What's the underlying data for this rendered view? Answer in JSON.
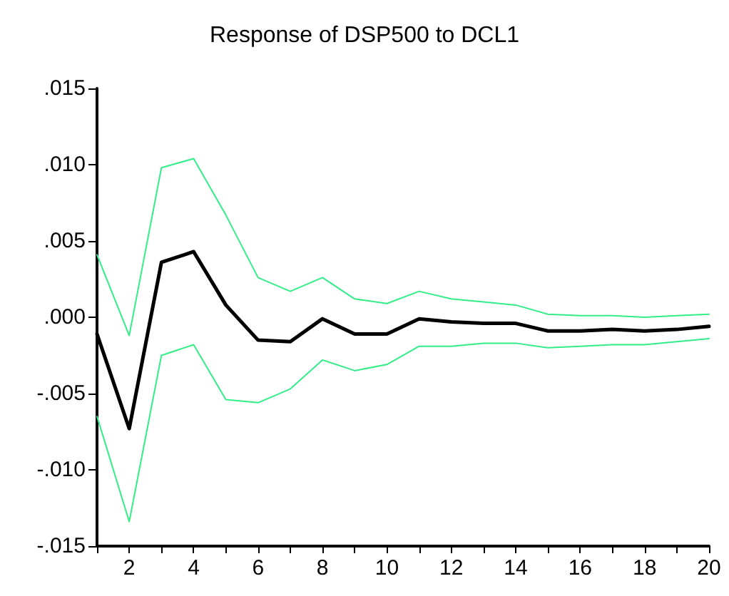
{
  "chart_data": {
    "type": "line",
    "title": "Response of DSP500 to DCL1",
    "x": [
      1,
      2,
      3,
      4,
      5,
      6,
      7,
      8,
      9,
      10,
      11,
      12,
      13,
      14,
      15,
      16,
      17,
      18,
      19,
      20
    ],
    "series": [
      {
        "color": "#000000",
        "values": [
          -0.0011,
          -0.0073,
          0.0036,
          0.0043,
          0.0008,
          -0.0015,
          -0.0016,
          -0.0001,
          -0.0011,
          -0.0011,
          -0.0001,
          -0.0003,
          -0.0004,
          -0.0004,
          -0.0009,
          -0.0009,
          -0.0008,
          -0.0009,
          -0.0008,
          -0.0006
        ]
      },
      {
        "color": "#33ee88",
        "values": [
          0.0041,
          -0.0012,
          0.0098,
          0.0104,
          0.0067,
          0.0026,
          0.0017,
          0.0026,
          0.0012,
          0.0009,
          0.0017,
          0.0012,
          0.001,
          0.0008,
          0.0002,
          0.0001,
          0.0001,
          0.0,
          0.0001,
          0.0002
        ]
      },
      {
        "color": "#33ee88",
        "values": [
          -0.0065,
          -0.0134,
          -0.0025,
          -0.0018,
          -0.0054,
          -0.0056,
          -0.0047,
          -0.0028,
          -0.0035,
          -0.0031,
          -0.0019,
          -0.0019,
          -0.0017,
          -0.0017,
          -0.002,
          -0.0019,
          -0.0018,
          -0.0018,
          -0.0016,
          -0.0014
        ]
      }
    ],
    "xlim": [
      1,
      20
    ],
    "xticks": [
      {
        "value": 1,
        "label": null
      },
      2,
      {
        "value": 3,
        "label": null
      },
      4,
      {
        "value": 5,
        "label": null
      },
      6,
      {
        "value": 7,
        "label": null
      },
      8,
      {
        "value": 9,
        "label": null
      },
      10,
      {
        "value": 11,
        "label": null
      },
      12,
      {
        "value": 13,
        "label": null
      },
      14,
      {
        "value": 15,
        "label": null
      },
      16,
      {
        "value": 17,
        "label": null
      },
      18,
      {
        "value": 19,
        "label": null
      },
      20
    ],
    "ylim": [
      -0.015,
      0.015
    ],
    "yticks": [
      {
        "value": -0.015,
        "label": "-.015"
      },
      {
        "value": -0.01,
        "label": "-.010"
      },
      {
        "value": -0.005,
        "label": "-.005"
      },
      {
        "value": 0,
        "label": ".000"
      },
      {
        "value": 0.005,
        "label": ".005"
      },
      {
        "value": 0.01,
        "label": ".010"
      },
      {
        "value": 0.015,
        "label": ".015"
      }
    ],
    "marker": "none",
    "line_style": "solid"
  }
}
